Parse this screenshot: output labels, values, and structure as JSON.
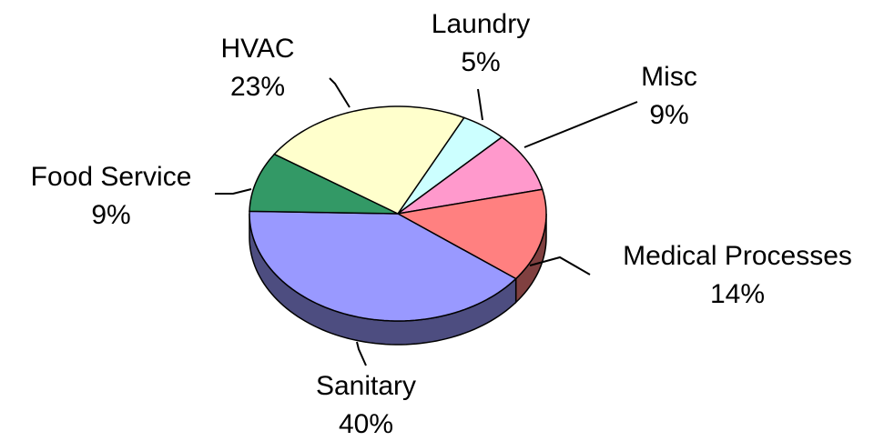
{
  "chart_data": {
    "type": "pie3d",
    "categories": [
      "Laundry",
      "Misc",
      "Medical Processes",
      "Sanitary",
      "Food Service",
      "HVAC"
    ],
    "values": [
      5,
      9,
      14,
      40,
      9,
      23
    ],
    "value_labels": [
      "5%",
      "9%",
      "14%",
      "40%",
      "9%",
      "23%"
    ],
    "colors": [
      "#ccffff",
      "#ff99cc",
      "#ff8080",
      "#9999ff",
      "#339966",
      "#ffffcc"
    ]
  }
}
